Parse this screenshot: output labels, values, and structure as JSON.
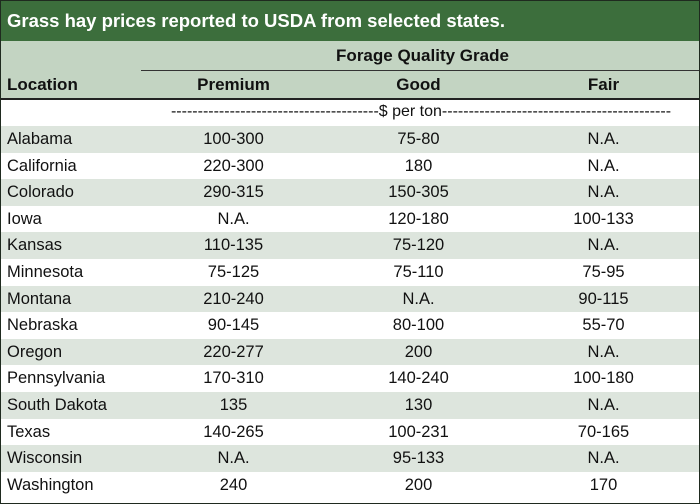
{
  "title": "Grass hay prices reported to USDA from selected states.",
  "header": {
    "group_label": "Forage Quality Grade",
    "location_label": "Location",
    "columns": [
      "Premium",
      "Good",
      "Fair"
    ],
    "units": "---------------------------------------$ per ton-------------------------------------------"
  },
  "rows": [
    {
      "location": "Alabama",
      "premium": "100-300",
      "good": "75-80",
      "fair": "N.A."
    },
    {
      "location": "California",
      "premium": "220-300",
      "good": "180",
      "fair": "N.A."
    },
    {
      "location": "Colorado",
      "premium": "290-315",
      "good": "150-305",
      "fair": "N.A."
    },
    {
      "location": "Iowa",
      "premium": "N.A.",
      "good": "120-180",
      "fair": "100-133"
    },
    {
      "location": "Kansas",
      "premium": "110-135",
      "good": "75-120",
      "fair": "N.A."
    },
    {
      "location": "Minnesota",
      "premium": "75-125",
      "good": "75-110",
      "fair": "75-95"
    },
    {
      "location": "Montana",
      "premium": "210-240",
      "good": "N.A.",
      "fair": "90-115"
    },
    {
      "location": "Nebraska",
      "premium": "90-145",
      "good": "80-100",
      "fair": "55-70"
    },
    {
      "location": "Oregon",
      "premium": "220-277",
      "good": "200",
      "fair": "N.A."
    },
    {
      "location": "Pennsylvania",
      "premium": "170-310",
      "good": "140-240",
      "fair": "100-180"
    },
    {
      "location": "South Dakota",
      "premium": "135",
      "good": "130",
      "fair": "N.A."
    },
    {
      "location": "Texas",
      "premium": "140-265",
      "good": "100-231",
      "fair": "70-165"
    },
    {
      "location": "Wisconsin",
      "premium": "N.A.",
      "good": "95-133",
      "fair": "N.A."
    },
    {
      "location": "Washington",
      "premium": "240",
      "good": "200",
      "fair": "170"
    }
  ],
  "colors": {
    "title_bg": "#3c6e3c",
    "header_bg": "#c3d4c2",
    "row_shade": "#dde5dd"
  }
}
